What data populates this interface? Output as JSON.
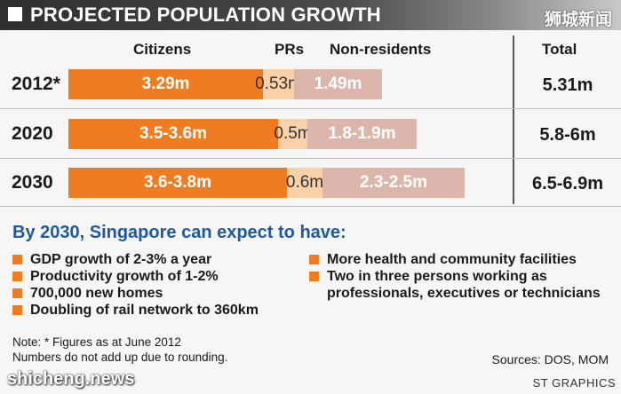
{
  "header": {
    "title": "PROJECTED POPULATION GROWTH",
    "watermark": "狮城新闻"
  },
  "chart_data": {
    "type": "bar",
    "stacked": true,
    "orientation": "horizontal",
    "series_names": [
      "Citizens",
      "PRs",
      "Non-residents"
    ],
    "total_label": "Total",
    "colors": [
      "#f07c22",
      "#fbd1a9",
      "#dcb6aa"
    ],
    "categories": [
      "2012*",
      "2020",
      "2030"
    ],
    "series": [
      {
        "name": "Citizens",
        "values": [
          3.29,
          3.55,
          3.7
        ],
        "labels": [
          "3.29m",
          "3.5-3.6m",
          "3.6-3.8m"
        ]
      },
      {
        "name": "PRs",
        "values": [
          0.53,
          0.5,
          0.6
        ],
        "labels": [
          "0.53m",
          "0.5m",
          "0.6m"
        ]
      },
      {
        "name": "Non-residents",
        "values": [
          1.49,
          1.85,
          2.4
        ],
        "labels": [
          "1.49m",
          "1.8-1.9m",
          "2.3-2.5m"
        ]
      }
    ],
    "totals": [
      "5.31m",
      "5.8-6m",
      "6.5-6.9m"
    ]
  },
  "expectations": {
    "heading": "By 2030, Singapore can expect to have:",
    "left": [
      "GDP growth of 2-3% a year",
      "Productivity growth of 1-2%",
      "700,000 new homes",
      "Doubling of rail network to 360km"
    ],
    "right": [
      "More health and community facilities",
      "Two in three persons working as professionals, executives or technicians"
    ]
  },
  "notes": {
    "line1": "Note: * Figures as at June 2012",
    "line2": "Numbers do not add up due to rounding."
  },
  "sources": "Sources: DOS, MOM",
  "watermark_bottom": "shicheng.news",
  "credit": "ST GRAPHICS"
}
